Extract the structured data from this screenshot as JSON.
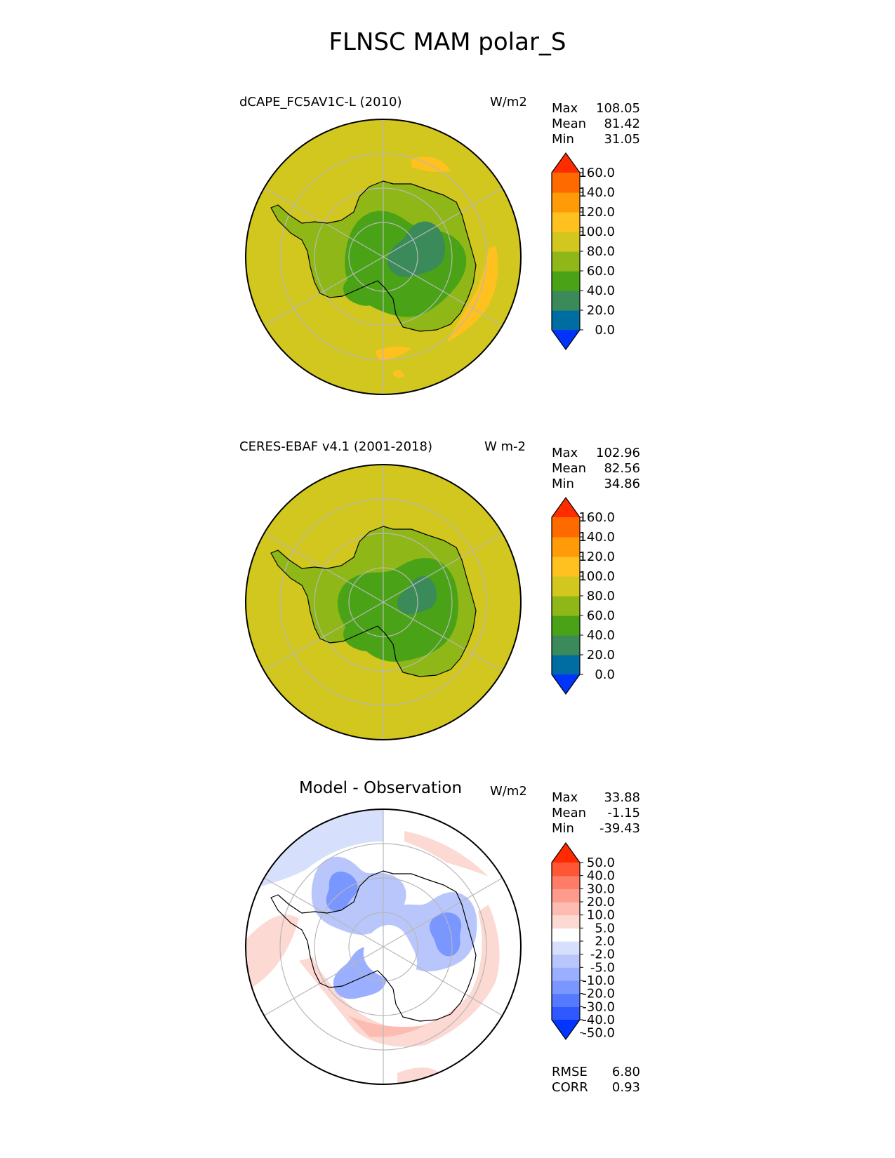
{
  "title": "FLNSC MAM polar_S",
  "colors": {
    "abs_levels": [
      "#0034fb",
      "#006da2",
      "#3a8a5a",
      "#4aa317",
      "#8fb717",
      "#d2c71f",
      "#fec11f",
      "#ff9a08",
      "#ff6a00",
      "#ff2c00"
    ],
    "diff_levels": [
      "#0235ff",
      "#2f58ff",
      "#567aff",
      "#7a96ff",
      "#9aafff",
      "#b8c6fb",
      "#d6dffb",
      "#ffffff",
      "#fcd9d2",
      "#fcbcb2",
      "#fd9c8d",
      "#ff7c66",
      "#ff5636",
      "#ff2a00"
    ],
    "coast": "#000000",
    "grid": "#b8b8b8"
  },
  "chart_data": [
    {
      "type": "heatmap",
      "projection": "south-polar-stereographic",
      "title": "dCAPE_FC5AV1C-L (2010)",
      "units": "W/m2",
      "stats": [
        {
          "label": "Max",
          "value": "108.05"
        },
        {
          "label": "Mean",
          "value": "81.42"
        },
        {
          "label": "Min",
          "value": "31.05"
        }
      ],
      "colorbar": {
        "levels": [
          0,
          20,
          40,
          60,
          80,
          100,
          120,
          140,
          160
        ],
        "tick_labels": [
          "160.0",
          "140.0",
          "120.0",
          "100.0",
          "80.0",
          "60.0",
          "40.0",
          "20.0",
          "0.0"
        ],
        "extend": "both"
      }
    },
    {
      "type": "heatmap",
      "projection": "south-polar-stereographic",
      "title": "CERES-EBAF v4.1 (2001-2018)",
      "units": "W m-2",
      "stats": [
        {
          "label": "Max",
          "value": "102.96"
        },
        {
          "label": "Mean",
          "value": "82.56"
        },
        {
          "label": "Min",
          "value": "34.86"
        }
      ],
      "colorbar": {
        "levels": [
          0,
          20,
          40,
          60,
          80,
          100,
          120,
          140,
          160
        ],
        "tick_labels": [
          "160.0",
          "140.0",
          "120.0",
          "100.0",
          "80.0",
          "60.0",
          "40.0",
          "20.0",
          "0.0"
        ],
        "extend": "both"
      }
    },
    {
      "type": "heatmap",
      "projection": "south-polar-stereographic",
      "title": "Model - Observation",
      "units": "W/m2",
      "stats": [
        {
          "label": "Max",
          "value": "33.88"
        },
        {
          "label": "Mean",
          "value": "-1.15"
        },
        {
          "label": "Min",
          "value": "-39.43"
        }
      ],
      "metrics": [
        {
          "label": "RMSE",
          "value": "6.80"
        },
        {
          "label": "CORR",
          "value": "0.93"
        }
      ],
      "colorbar": {
        "levels": [
          -50,
          -40,
          -30,
          -20,
          -10,
          -5,
          -2,
          2,
          5,
          10,
          20,
          30,
          40,
          50
        ],
        "tick_labels": [
          "50.0",
          "40.0",
          "30.0",
          "20.0",
          "10.0",
          "5.0",
          "2.0",
          "-2.0",
          "-5.0",
          "-10.0",
          "-20.0",
          "-30.0",
          "-40.0",
          "-50.0"
        ],
        "extend": "both"
      }
    }
  ]
}
